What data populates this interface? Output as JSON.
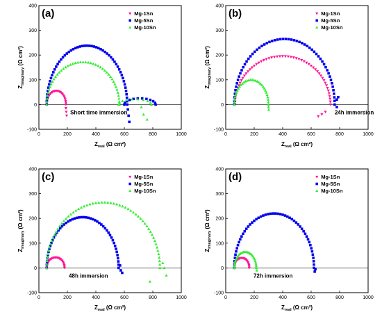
{
  "figure": {
    "series_colors": {
      "Mg-1Sn": "#ff1493",
      "Mg-5Sn": "#0000ee",
      "Mg-10Sn": "#33ee33"
    },
    "marker_shapes": {
      "Mg-1Sn": "triangle-down",
      "Mg-5Sn": "square",
      "Mg-10Sn": "triangle-up"
    }
  },
  "chart_data": [
    {
      "type": "scatter",
      "panel": "(a)",
      "annotation": "Short time immersion",
      "xlabel_main": "Z",
      "xlabel_sub": "real",
      "xlabel_unit": " (Ω cm²)",
      "ylabel_main": "Z",
      "ylabel_sub": "imaginary",
      "ylabel_unit": " (Ω cm²)",
      "xlim": [
        0,
        1000
      ],
      "ylim": [
        -100,
        400
      ],
      "xticks": [
        0,
        200,
        400,
        600,
        800,
        1000
      ],
      "yticks": [
        -100,
        0,
        100,
        200,
        300,
        400
      ],
      "legend": [
        "Mg-1Sn",
        "Mg-5Sn",
        "Mg-10Sn"
      ],
      "series": [
        {
          "name": "Mg-1Sn",
          "arcs": [
            {
              "r0": 55,
              "r1": 190,
              "peak": 55,
              "n": 26
            }
          ],
          "tail": [
            [
              190,
              -15
            ],
            [
              192,
              -30
            ],
            [
              195,
              -45
            ]
          ]
        },
        {
          "name": "Mg-5Sn",
          "arcs": [
            {
              "r0": 55,
              "r1": 620,
              "peak": 238,
              "n": 55
            },
            {
              "r0": 600,
              "r1": 820,
              "peak": 25,
              "n": 12
            }
          ],
          "tail": [
            [
              625,
              -20
            ],
            [
              630,
              -45
            ],
            [
              635,
              -70
            ]
          ]
        },
        {
          "name": "Mg-10Sn",
          "arcs": [
            {
              "r0": 55,
              "r1": 565,
              "peak": 172,
              "n": 45
            },
            {
              "r0": 560,
              "r1": 790,
              "peak": 22,
              "n": 10
            }
          ],
          "tail": [
            [
              720,
              -10
            ],
            [
              735,
              -40
            ],
            [
              760,
              -60
            ]
          ]
        }
      ]
    },
    {
      "type": "scatter",
      "panel": "(b)",
      "annotation": "24h immersion",
      "xlabel_main": "Z",
      "xlabel_sub": "real",
      "xlabel_unit": " (Ω cm²)",
      "ylabel_main": "Z",
      "ylabel_sub": "imaginary",
      "ylabel_unit": " (Ω cm²)",
      "xlim": [
        0,
        1000
      ],
      "ylim": [
        -100,
        400
      ],
      "xticks": [
        0,
        200,
        400,
        600,
        800,
        1000
      ],
      "yticks": [
        -100,
        0,
        100,
        200,
        300,
        400
      ],
      "legend": [
        "Mg-1Sn",
        "Mg-5Sn",
        "Mg-10Sn"
      ],
      "series": [
        {
          "name": "Mg-1Sn",
          "arcs": [
            {
              "r0": 65,
              "r1": 735,
              "peak": 195,
              "n": 55
            }
          ],
          "tail": [
            [
              700,
              -30
            ],
            [
              675,
              -40
            ],
            [
              650,
              -48
            ]
          ]
        },
        {
          "name": "Mg-5Sn",
          "arcs": [
            {
              "r0": 60,
              "r1": 765,
              "peak": 265,
              "n": 58
            }
          ],
          "tail": [
            [
              780,
              20
            ],
            [
              790,
              30
            ],
            [
              780,
              -10
            ]
          ]
        },
        {
          "name": "Mg-10Sn",
          "arcs": [
            {
              "r0": 60,
              "r1": 300,
              "peak": 100,
              "n": 32
            }
          ],
          "tail": [
            [
              300,
              -10
            ],
            [
              302,
              -20
            ]
          ]
        }
      ]
    },
    {
      "type": "scatter",
      "panel": "(c)",
      "annotation": "48h immersion",
      "xlabel_main": "Z",
      "xlabel_sub": "real",
      "xlabel_unit": " (Ω cm²)",
      "ylabel_main": "Z",
      "ylabel_sub": "imaginary",
      "ylabel_unit": " (Ω cm²)",
      "xlim": [
        0,
        1000
      ],
      "ylim": [
        -100,
        400
      ],
      "xticks": [
        0,
        200,
        400,
        600,
        800,
        1000
      ],
      "yticks": [
        -100,
        0,
        100,
        200,
        300,
        400
      ],
      "legend": [
        "Mg-1Sn",
        "Mg-5Sn",
        "Mg-10Sn"
      ],
      "series": [
        {
          "name": "Mg-1Sn",
          "arcs": [
            {
              "r0": 55,
              "r1": 180,
              "peak": 42,
              "n": 26
            }
          ],
          "tail": []
        },
        {
          "name": "Mg-5Sn",
          "arcs": [
            {
              "r0": 55,
              "r1": 560,
              "peak": 205,
              "n": 50
            }
          ],
          "tail": [
            [
              570,
              10
            ],
            [
              575,
              -10
            ],
            [
              585,
              -20
            ]
          ]
        },
        {
          "name": "Mg-10Sn",
          "arcs": [
            {
              "r0": 55,
              "r1": 850,
              "peak": 265,
              "n": 60
            }
          ],
          "tail": [
            [
              870,
              20
            ],
            [
              880,
              0
            ],
            [
              895,
              -30
            ],
            [
              780,
              -55
            ]
          ]
        }
      ]
    },
    {
      "type": "scatter",
      "panel": "(d)",
      "annotation": "72h immersion",
      "xlabel_main": "Z",
      "xlabel_sub": "real",
      "xlabel_unit": " (Ω cm²)",
      "ylabel_main": "Z",
      "ylabel_sub": "imaginary",
      "ylabel_unit": " (Ω cm²)",
      "xlim": [
        0,
        1000
      ],
      "ylim": [
        -100,
        400
      ],
      "xticks": [
        0,
        200,
        400,
        600,
        800,
        1000
      ],
      "yticks": [
        -100,
        0,
        100,
        200,
        300,
        400
      ],
      "legend": [
        "Mg-1Sn",
        "Mg-5Sn",
        "Mg-10Sn"
      ],
      "series": [
        {
          "name": "Mg-1Sn",
          "arcs": [
            {
              "r0": 60,
              "r1": 165,
              "peak": 40,
              "n": 24
            }
          ],
          "tail": []
        },
        {
          "name": "Mg-5Sn",
          "arcs": [
            {
              "r0": 60,
              "r1": 620,
              "peak": 220,
              "n": 52
            }
          ],
          "tail": [
            [
              630,
              -5
            ],
            [
              625,
              -15
            ]
          ]
        },
        {
          "name": "Mg-10Sn",
          "arcs": [
            {
              "r0": 60,
              "r1": 215,
              "peak": 65,
              "n": 28
            }
          ],
          "tail": [
            [
              218,
              -10
            ]
          ]
        }
      ]
    }
  ]
}
